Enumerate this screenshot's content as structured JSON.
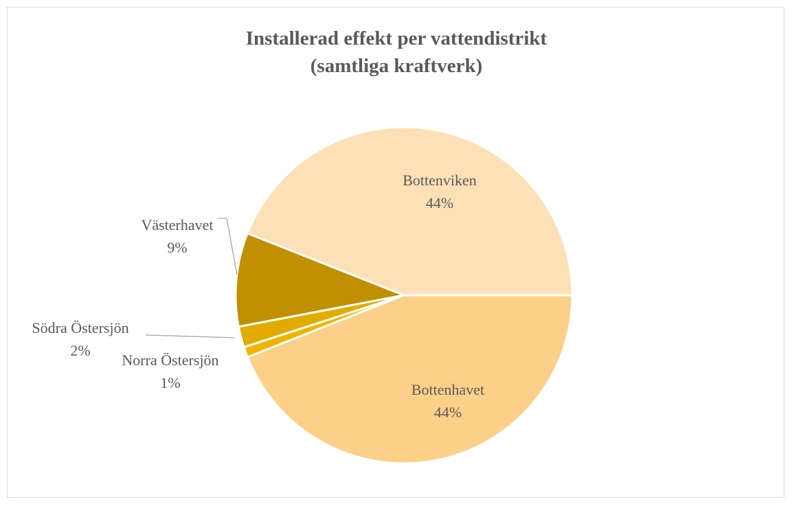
{
  "chart_data": {
    "type": "pie",
    "title": [
      "Installerad effekt per vattendistrikt",
      "(samtliga kraftverk)"
    ],
    "categories": [
      "Bottenhavet",
      "Norra Östersjön",
      "Södra Östersjön",
      "Västerhavet",
      "Bottenviken"
    ],
    "values": [
      44,
      1,
      2,
      9,
      44
    ],
    "value_labels": [
      "44%",
      "1%",
      "2%",
      "9%",
      "44%"
    ],
    "colors": [
      "#fcd088",
      "#f0b400",
      "#e2ab00",
      "#c09000",
      "#fde0b6"
    ]
  }
}
